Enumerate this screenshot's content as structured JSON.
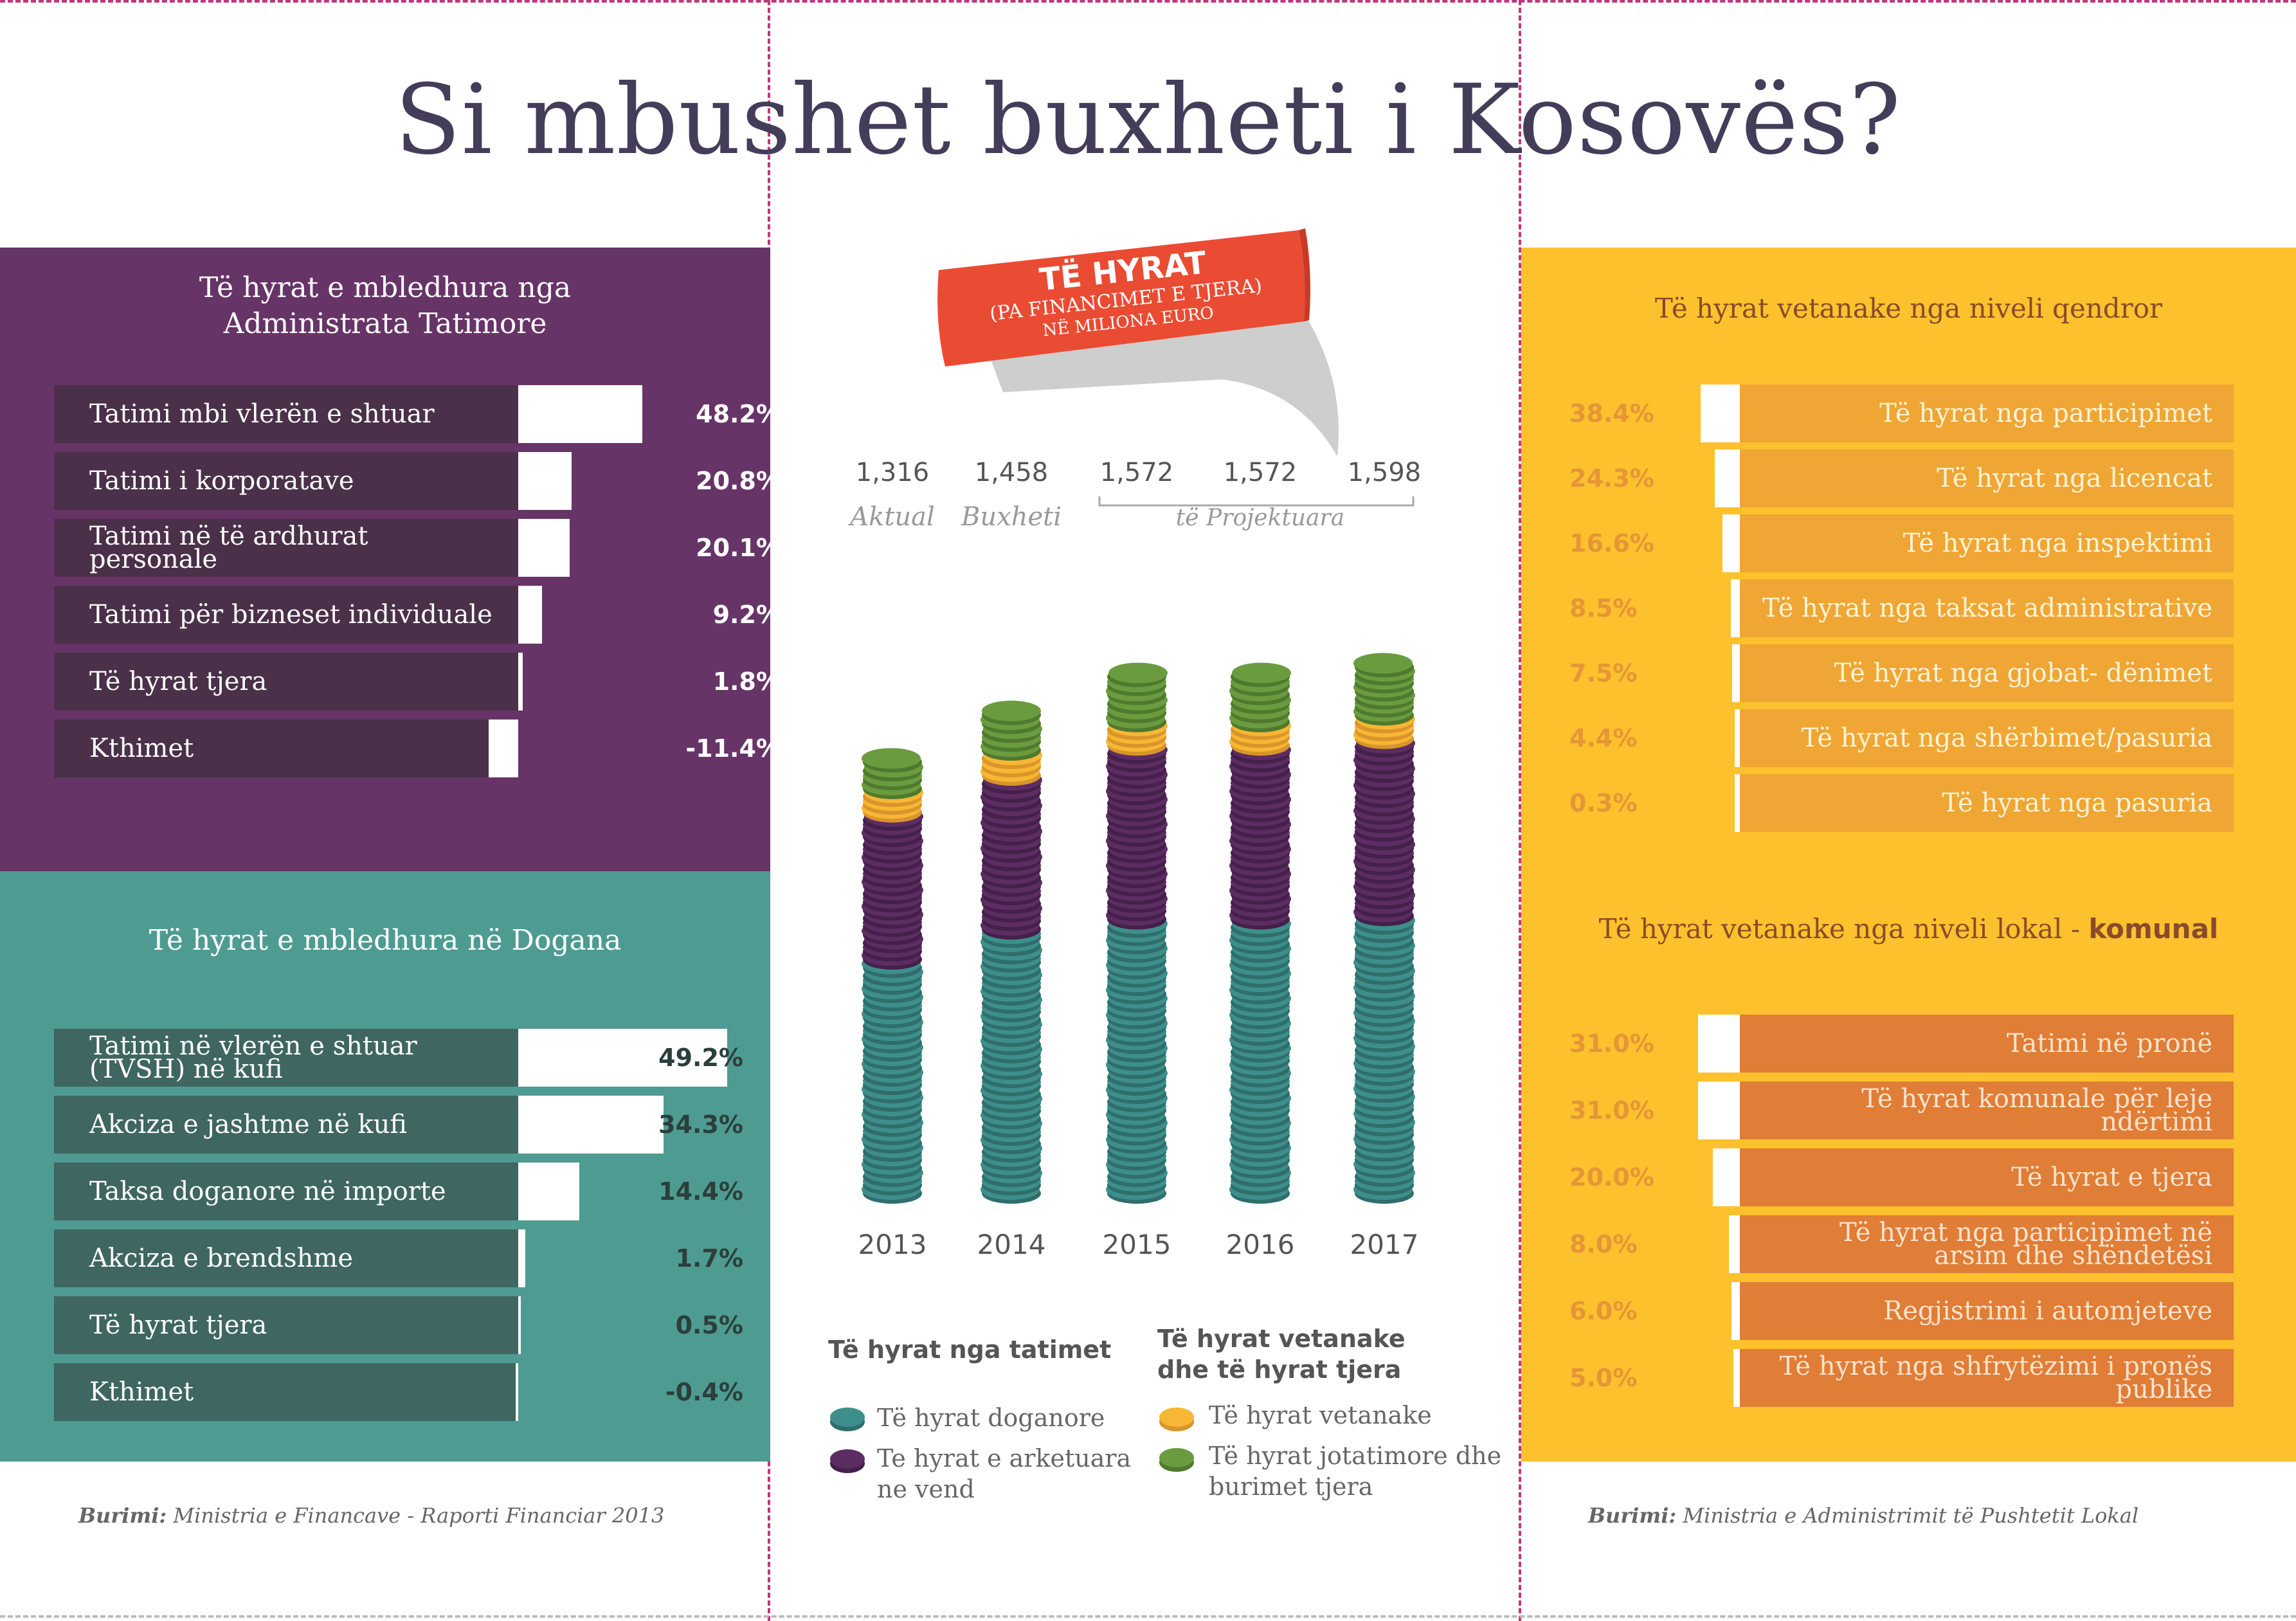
{
  "title": "Si mbushet buxheti i Kosovës?",
  "tax_admin": {
    "title_line1": "Të hyrat e mbledhura nga",
    "title_line2": "Administrata Tatimore",
    "rows": [
      {
        "label": "Tatimi mbi vlerën e shtuar",
        "pct": "48.2%",
        "value": 48.2
      },
      {
        "label": "Tatimi i korporatave",
        "pct": "20.8%",
        "value": 20.8
      },
      {
        "label": "Tatimi në të ardhurat personale",
        "pct": "20.1%",
        "value": 20.1
      },
      {
        "label": "Tatimi për bizneset individuale",
        "pct": "9.2%",
        "value": 9.2
      },
      {
        "label": "Të hyrat tjera",
        "pct": "1.8%",
        "value": 1.8
      },
      {
        "label": "Kthimet",
        "pct": "-11.4%",
        "value": -11.4
      }
    ]
  },
  "customs": {
    "title": "Të hyrat e mbledhura në Dogana",
    "rows": [
      {
        "label": "Tatimi në vlerën e shtuar (TVSH) në kufi",
        "pct": "49.2%",
        "value": 49.2
      },
      {
        "label": "Akciza e jashtme në kufi",
        "pct": "34.3%",
        "value": 34.3
      },
      {
        "label": "Taksa doganore në importe",
        "pct": "14.4%",
        "value": 14.4
      },
      {
        "label": "Akciza e brendshme",
        "pct": "1.7%",
        "value": 1.7
      },
      {
        "label": "Të hyrat tjera",
        "pct": "0.5%",
        "value": 0.5
      },
      {
        "label": "Kthimet",
        "pct": "-0.4%",
        "value": -0.4
      }
    ]
  },
  "source_left_label": "Burimi:",
  "source_left_text": "Ministria e Financave - Raporti Financiar 2013",
  "ribbon": {
    "line1": "TË HYRAT",
    "line2": "(PA FINANCIMET E TJERA)",
    "line3": "NË MILIONA EURO"
  },
  "central_chart": {
    "years": [
      "2013",
      "2014",
      "2015",
      "2016",
      "2017"
    ],
    "totals": [
      "1,316",
      "1,458",
      "1,572",
      "1,572",
      "1,598"
    ],
    "status_actual": "Aktual",
    "status_budget": "Buxheti",
    "status_projected": "të Projektuara",
    "legend_head_1": "Të hyrat nga tatimet",
    "legend_head_2_line1": "Të hyrat  vetanake",
    "legend_head_2_line2": "dhe të hyrat tjera",
    "legend_customs": "Të hyrat doganore",
    "legend_domestic_line1": "Te hyrat e arketuara",
    "legend_domestic_line2": "ne vend",
    "legend_own": "Të hyrat vetanake",
    "legend_nontax_line1": "Të hyrat jotatimore dhe",
    "legend_nontax_line2": "burimet tjera"
  },
  "central_level": {
    "title": "Të hyrat vetanake nga niveli qendror",
    "rows": [
      {
        "label": "Të hyrat nga participimet",
        "pct": "38.4%",
        "value": 38.4
      },
      {
        "label": "Të hyrat nga licencat",
        "pct": "24.3%",
        "value": 24.3
      },
      {
        "label": "Të hyrat nga inspektimi",
        "pct": "16.6%",
        "value": 16.6
      },
      {
        "label": "Të hyrat nga taksat administrative",
        "pct": "8.5%",
        "value": 8.5
      },
      {
        "label": "Të hyrat nga gjobat- dënimet",
        "pct": "7.5%",
        "value": 7.5
      },
      {
        "label": "Të hyrat nga shërbimet/pasuria",
        "pct": "4.4%",
        "value": 4.4
      },
      {
        "label": "Të hyrat nga pasuria",
        "pct": "0.3%",
        "value": 0.3
      }
    ]
  },
  "local_level": {
    "title_part1": "Të hyrat vetanake nga niveli lokal - ",
    "title_part2": "komunal",
    "rows": [
      {
        "label": "Tatimi në pronë",
        "pct": "31.0%",
        "value": 31.0
      },
      {
        "label": "Të hyrat komunale për leje ndërtimi",
        "pct": "31.0%",
        "value": 31.0
      },
      {
        "label": "Të hyrat e tjera",
        "pct": "20.0%",
        "value": 20.0
      },
      {
        "label": "Të hyrat nga participimet në arsim dhe shëndetësi",
        "pct": "8.0%",
        "value": 8.0
      },
      {
        "label": "Regjistrimi i automjeteve",
        "pct": "6.0%",
        "value": 6.0
      },
      {
        "label": "Të hyrat nga shfrytëzimi i pronës publike",
        "pct": "5.0%",
        "value": 5.0
      }
    ]
  },
  "source_right_label": "Burimi:",
  "source_right_text": "Ministria e Administrimit të Pushtetit Lokal",
  "colors": {
    "tax_panel": "#673467",
    "tax_bar": "#4a3049",
    "customs_panel": "#4e9b92",
    "customs_bar": "#3f6660",
    "right_panel": "#fcc12c",
    "central_bar": "#efa634",
    "local_bar": "#e07d36",
    "coin_teal": "#3e8f8b",
    "coin_purple": "#5c2d62",
    "coin_yellow": "#f7b634",
    "coin_green": "#6a9c3f"
  },
  "chart_data": [
    {
      "type": "bar",
      "orientation": "horizontal",
      "title": "Të hyrat e mbledhura nga Administrata Tatimore",
      "categories": [
        "Tatimi mbi vlerën e shtuar",
        "Tatimi i korporatave",
        "Tatimi në të ardhurat personale",
        "Tatimi për bizneset individuale",
        "Të hyrat tjera",
        "Kthimet"
      ],
      "values": [
        48.2,
        20.8,
        20.1,
        9.2,
        1.8,
        -11.4
      ]
    },
    {
      "type": "bar",
      "orientation": "horizontal",
      "title": "Të hyrat e mbledhura në Dogana",
      "categories": [
        "Tatimi në vlerën e shtuar (TVSH) në kufi",
        "Akciza e jashtme në kufi",
        "Taksa doganore në importe",
        "Akciza e brendshme",
        "Të hyrat tjera",
        "Kthimet"
      ],
      "values": [
        49.2,
        34.3,
        14.4,
        1.7,
        0.5,
        -0.4
      ]
    },
    {
      "type": "bar",
      "stacked": true,
      "title": "TË HYRAT (PA FINANCIMET E TJERA) NË MILIONA EURO",
      "categories": [
        "2013",
        "2014",
        "2015",
        "2016",
        "2017"
      ],
      "totals": [
        1316,
        1458,
        1572,
        1572,
        1598
      ],
      "series": [
        {
          "name": "Të hyrat doganore",
          "values": [
            700,
            790,
            820,
            820,
            830
          ]
        },
        {
          "name": "Te hyrat e arketuara ne vend",
          "values": [
            440,
            460,
            520,
            520,
            530
          ]
        },
        {
          "name": "Të hyrat vetanake",
          "values": [
            70,
            75,
            70,
            70,
            70
          ]
        },
        {
          "name": "Të hyrat jotatimore dhe burimet tjera",
          "values": [
            106,
            133,
            162,
            162,
            168
          ]
        }
      ]
    },
    {
      "type": "bar",
      "orientation": "horizontal",
      "title": "Të hyrat vetanake nga niveli qendror",
      "categories": [
        "Të hyrat nga participimet",
        "Të hyrat nga licencat",
        "Të hyrat nga inspektimi",
        "Të hyrat nga taksat administrative",
        "Të hyrat nga gjobat- dënimet",
        "Të hyrat nga shërbimet/pasuria",
        "Të hyrat nga pasuria"
      ],
      "values": [
        38.4,
        24.3,
        16.6,
        8.5,
        7.5,
        4.4,
        0.3
      ]
    },
    {
      "type": "bar",
      "orientation": "horizontal",
      "title": "Të hyrat vetanake nga niveli lokal - komunal",
      "categories": [
        "Tatimi në pronë",
        "Të hyrat komunale për leje ndërtimi",
        "Të hyrat e tjera",
        "Të hyrat nga participimet në arsim dhe shëndetësi",
        "Regjistrimi i automjeteve",
        "Të hyrat nga shfrytëzimi i pronës publike"
      ],
      "values": [
        31.0,
        31.0,
        20.0,
        8.0,
        6.0,
        5.0
      ]
    }
  ]
}
